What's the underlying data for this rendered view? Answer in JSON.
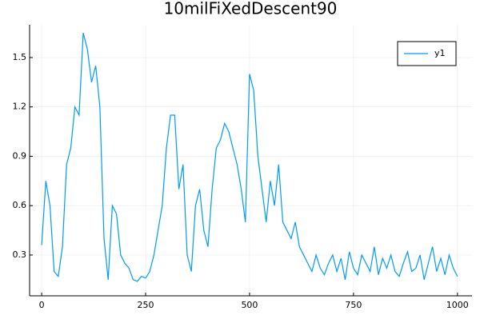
{
  "chart_data": {
    "type": "line",
    "title": "10milFiXedDescent90",
    "x": [
      0,
      10,
      20,
      30,
      40,
      50,
      60,
      70,
      80,
      90,
      100,
      110,
      120,
      130,
      140,
      150,
      160,
      170,
      180,
      190,
      200,
      210,
      220,
      230,
      240,
      250,
      260,
      270,
      280,
      290,
      300,
      310,
      320,
      330,
      340,
      350,
      360,
      370,
      380,
      390,
      400,
      410,
      420,
      430,
      440,
      450,
      460,
      470,
      480,
      490,
      500,
      510,
      520,
      530,
      540,
      550,
      560,
      570,
      580,
      590,
      600,
      610,
      620,
      630,
      640,
      650,
      660,
      670,
      680,
      690,
      700,
      710,
      720,
      730,
      740,
      750,
      760,
      770,
      780,
      790,
      800,
      810,
      820,
      830,
      840,
      850,
      860,
      870,
      880,
      890,
      900,
      910,
      920,
      930,
      940,
      950,
      960,
      970,
      980,
      990,
      1000
    ],
    "series": [
      {
        "name": "y1",
        "color": "#009af9",
        "values": [
          0.36,
          0.75,
          0.6,
          0.2,
          0.17,
          0.35,
          0.85,
          0.95,
          1.2,
          1.15,
          1.65,
          1.55,
          1.35,
          1.45,
          1.2,
          0.4,
          0.15,
          0.6,
          0.55,
          0.3,
          0.25,
          0.22,
          0.15,
          0.14,
          0.17,
          0.16,
          0.2,
          0.3,
          0.45,
          0.6,
          0.95,
          1.15,
          1.15,
          0.7,
          0.85,
          0.3,
          0.2,
          0.6,
          0.7,
          0.45,
          0.35,
          0.7,
          0.95,
          1.0,
          1.1,
          1.05,
          0.95,
          0.85,
          0.7,
          0.5,
          1.4,
          1.3,
          0.9,
          0.7,
          0.5,
          0.75,
          0.6,
          0.85,
          0.5,
          0.45,
          0.4,
          0.5,
          0.35,
          0.3,
          0.25,
          0.2,
          0.3,
          0.22,
          0.18,
          0.25,
          0.3,
          0.2,
          0.28,
          0.15,
          0.32,
          0.22,
          0.18,
          0.3,
          0.25,
          0.2,
          0.35,
          0.18,
          0.28,
          0.22,
          0.3,
          0.2,
          0.17,
          0.25,
          0.32,
          0.2,
          0.22,
          0.3,
          0.15,
          0.25,
          0.35,
          0.2,
          0.28,
          0.18,
          0.3,
          0.22,
          0.17
        ]
      }
    ],
    "xlim": [
      -29,
      1035
    ],
    "ylim": [
      0.052,
      1.699
    ],
    "xticks": [
      0,
      250,
      500,
      750,
      1000
    ],
    "yticks": [
      0.3,
      0.6,
      0.9,
      1.2,
      1.5
    ],
    "grid": true,
    "legend": "top-right"
  }
}
